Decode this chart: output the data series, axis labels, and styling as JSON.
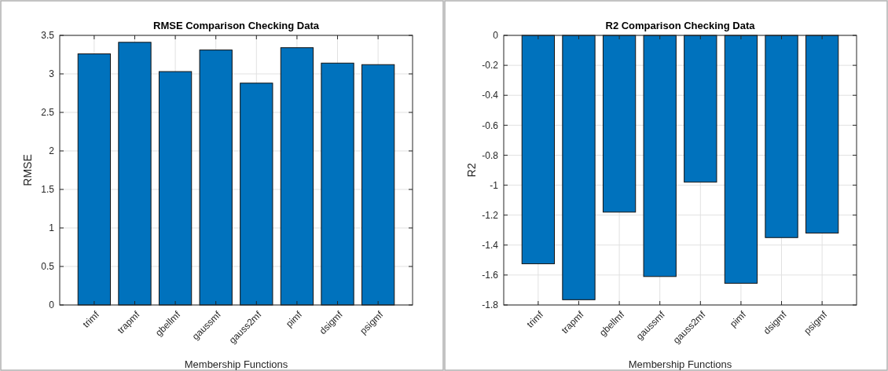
{
  "chart_data": [
    {
      "type": "bar",
      "title": "RMSE Comparison Checking Data",
      "xlabel": "Membership Functions",
      "ylabel": "RMSE",
      "categories": [
        "trimf",
        "trapmf",
        "gbellmf",
        "gaussmf",
        "gauss2mf",
        "pimf",
        "dsigmf",
        "psigmf"
      ],
      "values": [
        3.26,
        3.41,
        3.03,
        3.31,
        2.88,
        3.34,
        3.14,
        3.12
      ],
      "color": "#0072bd",
      "ylim": [
        0,
        3.5
      ],
      "yticks": [
        0,
        0.5,
        1,
        1.5,
        2,
        2.5,
        3,
        3.5
      ],
      "grid": true
    },
    {
      "type": "bar",
      "title": "R2 Comparison Checking Data",
      "xlabel": "Membership Functions",
      "ylabel": "R2",
      "categories": [
        "trimf",
        "trapmf",
        "gbellmf",
        "gaussmf",
        "gauss2mf",
        "pimf",
        "dsigmf",
        "psigmf"
      ],
      "values": [
        -1.525,
        -1.765,
        -1.18,
        -1.61,
        -0.98,
        -1.655,
        -1.35,
        -1.32
      ],
      "color": "#0072bd",
      "ylim": [
        -1.8,
        0
      ],
      "yticks": [
        -1.8,
        -1.6,
        -1.4,
        -1.2,
        -1,
        -0.8,
        -0.6,
        -0.4,
        -0.2,
        0
      ],
      "grid": true
    }
  ]
}
